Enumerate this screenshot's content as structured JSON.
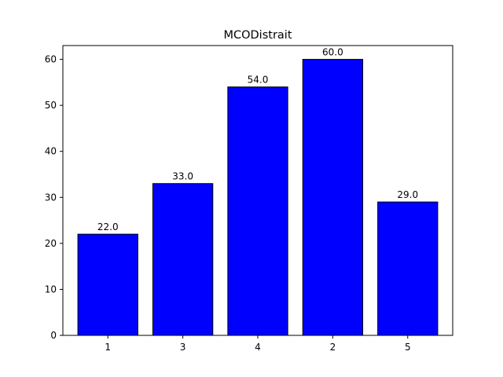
{
  "chart_data": {
    "type": "bar",
    "title": "MCODistrait",
    "xlabel": "",
    "ylabel": "",
    "categories": [
      "1",
      "3",
      "4",
      "2",
      "5"
    ],
    "values": [
      22.0,
      33.0,
      54.0,
      60.0,
      29.0
    ],
    "value_labels": [
      "22.0",
      "33.0",
      "54.0",
      "60.0",
      "29.0"
    ],
    "ylim": [
      0,
      63
    ],
    "yticks": [
      0,
      10,
      20,
      30,
      40,
      50,
      60
    ],
    "ytick_labels": [
      "0",
      "10",
      "20",
      "30",
      "40",
      "50",
      "60"
    ],
    "grid": false,
    "legend": "none",
    "bar_color": "#0000ff",
    "edge_color": "#000000"
  }
}
